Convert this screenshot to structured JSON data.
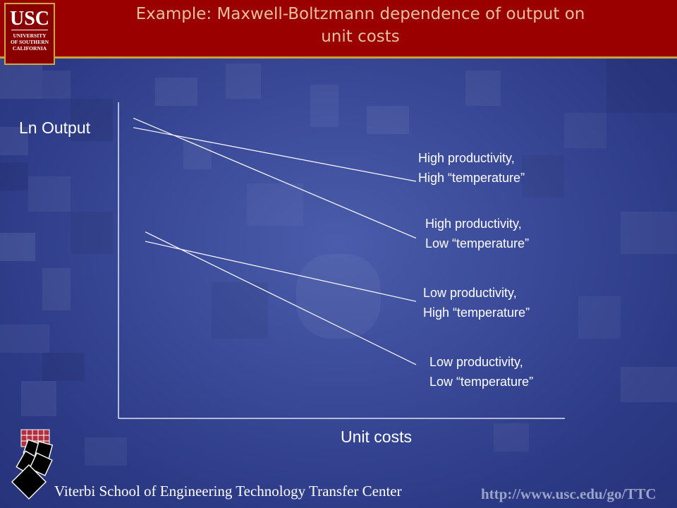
{
  "header": {
    "title_line1": "Example:  Maxwell-Boltzmann dependence of output on",
    "title_line2": "unit costs",
    "logo_main": "USC",
    "logo_sub1": "UNIVERSITY",
    "logo_sub2": "OF SOUTHERN",
    "logo_sub3": "CALIFORNIA"
  },
  "colors": {
    "header_bg": "#9a0000",
    "title_text": "#e8c0a0",
    "background": "#3a4a98",
    "line": "#ffffff"
  },
  "chart_data": {
    "type": "line",
    "title": "",
    "xlabel": "Unit costs",
    "ylabel": "Ln Output",
    "series": [
      {
        "name": "High productivity,\nHigh “temperature”",
        "label_line1": "High productivity,",
        "label_line2": "High “temperature”",
        "x": [
          0.05,
          1.0
        ],
        "y": [
          0.92,
          0.75
        ]
      },
      {
        "name": "High productivity,\nLow “temperature”",
        "label_line1": "High productivity,",
        "label_line2": "Low “temperature”",
        "x": [
          0.05,
          1.0
        ],
        "y": [
          0.95,
          0.57
        ]
      },
      {
        "name": "Low productivity,\nHigh “temperature”",
        "label_line1": "Low productivity,",
        "label_line2": "High “temperature”",
        "x": [
          0.09,
          1.0
        ],
        "y": [
          0.56,
          0.37
        ]
      },
      {
        "name": "Low productivity,\nLow “temperature”",
        "label_line1": "Low productivity,",
        "label_line2": "Low “temperature”",
        "x": [
          0.09,
          1.0
        ],
        "y": [
          0.59,
          0.17
        ]
      }
    ],
    "xlim": [
      0,
      1.5
    ],
    "ylim": [
      0,
      1
    ],
    "grid": false
  },
  "footer": {
    "center_name": "Viterbi School of Engineering Technology Transfer Center",
    "url": "http://www.usc.edu/go/TTC"
  }
}
